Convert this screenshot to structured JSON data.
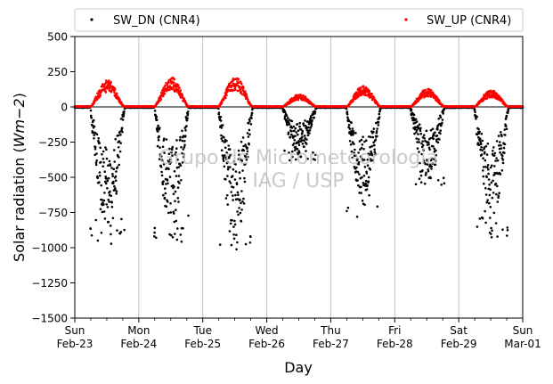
{
  "chart_data": {
    "type": "scatter",
    "xlabel": "Day",
    "ylabel_main": "Solar radiation (",
    "ylabel_unit": "Wm",
    "ylabel_exp": "−2",
    "ylabel_close": ")",
    "ylim": [
      -1500,
      500
    ],
    "yticks": [
      500,
      250,
      0,
      -250,
      -500,
      -750,
      -1000,
      -1250,
      -1500
    ],
    "ytick_labels": [
      "500",
      "250",
      "0",
      "−250",
      "−500",
      "−750",
      "−1000",
      "−1250",
      "−1500"
    ],
    "xlim_days": [
      0,
      7
    ],
    "x_ticks": [
      {
        "day": "Sun",
        "date": "Feb-23"
      },
      {
        "day": "Mon",
        "date": "Feb-24"
      },
      {
        "day": "Tue",
        "date": "Feb-25"
      },
      {
        "day": "Wed",
        "date": "Feb-26"
      },
      {
        "day": "Thu",
        "date": "Feb-27"
      },
      {
        "day": "Fri",
        "date": "Feb-28"
      },
      {
        "day": "Sat",
        "date": "Feb-29"
      },
      {
        "day": "Sun",
        "date": "Mar-01"
      }
    ],
    "grid": "vertical major",
    "legend_placement": "above plot",
    "watermark": [
      "Grupo de Micrometeorologia",
      "IAG / USP"
    ],
    "series": [
      {
        "name": "SW_DN (CNR4)",
        "color": "#000000",
        "daily_peak_min": [
          -980,
          -960,
          -1020,
          -380,
          -780,
          -560,
          -960
        ]
      },
      {
        "name": "SW_UP (CNR4)",
        "color": "#ff0000",
        "daily_peak_max": [
          190,
          210,
          210,
          90,
          150,
          130,
          120
        ]
      }
    ]
  }
}
